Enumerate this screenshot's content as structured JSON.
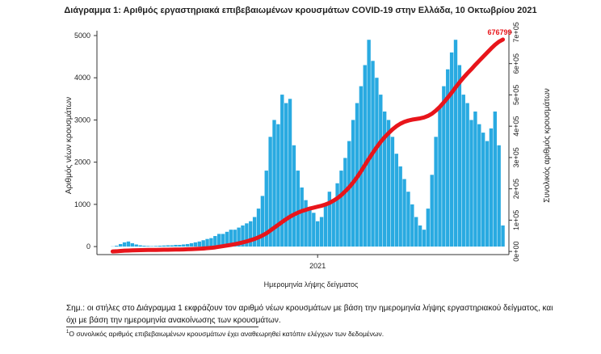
{
  "chart_data": {
    "type": "bar-line",
    "title": "Διάγραμμα 1: Αριθμός εργαστηριακά επιβεβαιωμένων κρουσμάτων COVID-19 στην Ελλάδα, 10 Οκτωβρίου 2021",
    "y_label": "Αριθμός νέων κρουσμάτων",
    "y2_label": "Συνολικός αριθμός κρουσμάτων",
    "x_label": "Ημερομηνία λήψης δείγματος",
    "categories": [
      null,
      null,
      null,
      null,
      null,
      null,
      null,
      null,
      null,
      null,
      null,
      null,
      null,
      null,
      null,
      null,
      null,
      null,
      null,
      null,
      null,
      null,
      null,
      null,
      null,
      null,
      null,
      null,
      null,
      null,
      null,
      null,
      null,
      null,
      null,
      null,
      null,
      null,
      null,
      null,
      null,
      null,
      null,
      null,
      null,
      null,
      null,
      null,
      null,
      null,
      null,
      null,
      "2021",
      null,
      null,
      null,
      null,
      null,
      null,
      null,
      null,
      null,
      null,
      null,
      null,
      null,
      null,
      null,
      null,
      null,
      null,
      null,
      null,
      null,
      null,
      null,
      null,
      null,
      null,
      null,
      null,
      null,
      null,
      null,
      null,
      null,
      null,
      null,
      null,
      null,
      null,
      null,
      null,
      null,
      null,
      null,
      null,
      null,
      null,
      null
    ],
    "series": [
      {
        "type": "bar",
        "color": "#29aae1",
        "values": [
          5,
          20,
          60,
          100,
          120,
          80,
          50,
          30,
          20,
          15,
          10,
          15,
          20,
          25,
          30,
          30,
          40,
          40,
          50,
          60,
          80,
          100,
          120,
          150,
          180,
          200,
          250,
          300,
          300,
          350,
          400,
          400,
          450,
          500,
          550,
          600,
          700,
          900,
          1200,
          1800,
          2600,
          3000,
          2900,
          3600,
          3400,
          3500,
          2400,
          1800,
          1400,
          1100,
          900,
          800,
          600,
          700,
          1000,
          1300,
          1100,
          1500,
          1800,
          2100,
          2500,
          3000,
          3400,
          3800,
          4300,
          4900,
          4400,
          4000,
          3600,
          3200,
          3000,
          2600,
          2200,
          1900,
          1600,
          1300,
          1000,
          700,
          500,
          400,
          900,
          1700,
          2600,
          3300,
          3800,
          4200,
          4600,
          4900,
          4300,
          3600,
          3400,
          3000,
          3200,
          2900,
          2700,
          2500,
          2800,
          3200,
          2400,
          500
        ]
      },
      {
        "type": "line",
        "axis": "y2",
        "color": "#e8151b",
        "values": [
          0,
          500,
          1500,
          2500,
          3000,
          3500,
          4000,
          4300,
          4500,
          4700,
          4900,
          5000,
          5200,
          5400,
          5600,
          5800,
          6000,
          6300,
          6600,
          7000,
          7500,
          8000,
          8700,
          9500,
          10500,
          11500,
          13000,
          15000,
          17000,
          19000,
          21000,
          23500,
          26000,
          29000,
          32000,
          36000,
          40000,
          45000,
          51000,
          58000,
          67000,
          76000,
          85000,
          94000,
          103000,
          111000,
          118000,
          124000,
          129000,
          133000,
          137000,
          140000,
          143000,
          146000,
          150000,
          155000,
          162000,
          170000,
          180000,
          192000,
          205000,
          220000,
          237000,
          256000,
          276000,
          296000,
          315000,
          333000,
          350000,
          365000,
          378000,
          390000,
          400000,
          408000,
          414000,
          418000,
          421000,
          423000,
          425000,
          428000,
          433000,
          440000,
          450000,
          462000,
          476000,
          491000,
          507000,
          524000,
          540000,
          555000,
          569000,
          582000,
          596000,
          609000,
          622000,
          635000,
          648000,
          660000,
          670000,
          676799
        ]
      }
    ],
    "ylim": [
      -190,
      5115
    ],
    "yticks": [
      0,
      1000,
      2000,
      3000,
      4000,
      5000
    ],
    "y2lim": [
      -10000,
      705000
    ],
    "y2ticks": [
      {
        "value": 0,
        "label": "0e+00"
      },
      {
        "value": 100000,
        "label": "1e+05"
      },
      {
        "value": 200000,
        "label": "2e+05"
      },
      {
        "value": 300000,
        "label": "3e+05"
      },
      {
        "value": 400000,
        "label": "4e+05"
      },
      {
        "value": 500000,
        "label": "5e+05"
      },
      {
        "value": 600000,
        "label": "6e+05"
      },
      {
        "value": 700000,
        "label": "7e+05"
      }
    ],
    "labeled_points": [
      99
    ]
  },
  "note": "Σημ.: οι στήλες στο Διάγραμμα 1 εκφράζουν τον αριθμό νέων κρουσμάτων με βάση την ημερομηνία λήψης εργαστηριακού δείγματος, και όχι με βάση την ημερομηνία ανακοίνωσης των κρουσμάτων.",
  "footnote_marker": "1",
  "footnote": "Ο συνολικός αριθμός επιβεβαιωμένων κρουσμάτων έχει αναθεωρηθεί κατόπιν ελέγχων των δεδομένων."
}
